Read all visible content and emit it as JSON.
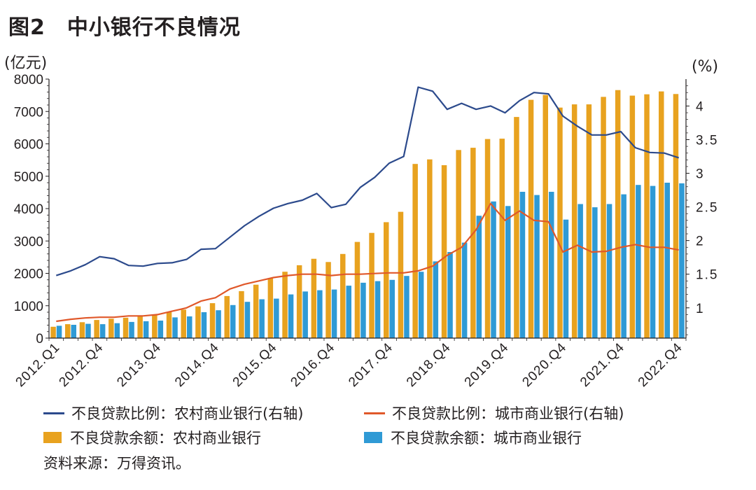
{
  "title": "图2　中小银行不良情况",
  "source": "资料来源：万得资讯。",
  "colors": {
    "rural_bar": "#e8a21f",
    "city_bar": "#2f9ad5",
    "rural_line": "#2c4a8c",
    "city_line": "#e0582a",
    "axis": "#231f20"
  },
  "chart_data": {
    "type": "bar",
    "title": "图2　中小银行不良情况",
    "left_axis": {
      "label": "(亿元)",
      "range": [
        0,
        8000
      ],
      "ticks": [
        "0",
        "1000",
        "2000",
        "3000",
        "4000",
        "5000",
        "6000",
        "7000",
        "8000"
      ]
    },
    "right_axis": {
      "label": "(%)",
      "range": [
        0.55,
        4.4
      ],
      "ticks": [
        "1",
        "1.5",
        "2",
        "2.5",
        "3",
        "3.5",
        "4"
      ],
      "tick_values": [
        1,
        1.5,
        2,
        2.5,
        3,
        3.5,
        4
      ]
    },
    "x_tick_labels": [
      "2012.Q1",
      "2012.Q4",
      "2013.Q4",
      "2014.Q4",
      "2015.Q4",
      "2016.Q4",
      "2017.Q4",
      "2018.Q4",
      "2019.Q4",
      "2020.Q4",
      "2021.Q4",
      "2022.Q4"
    ],
    "x_tick_indices": [
      0,
      3,
      7,
      11,
      15,
      19,
      23,
      27,
      31,
      35,
      39,
      43
    ],
    "categories": [
      "2012.Q1",
      "2012.Q2",
      "2012.Q3",
      "2012.Q4",
      "2013.Q1",
      "2013.Q2",
      "2013.Q3",
      "2013.Q4",
      "2014.Q1",
      "2014.Q2",
      "2014.Q3",
      "2014.Q4",
      "2015.Q1",
      "2015.Q2",
      "2015.Q3",
      "2015.Q4",
      "2016.Q1",
      "2016.Q2",
      "2016.Q3",
      "2016.Q4",
      "2017.Q1",
      "2017.Q2",
      "2017.Q3",
      "2017.Q4",
      "2018.Q1",
      "2018.Q2",
      "2018.Q3",
      "2018.Q4",
      "2019.Q1",
      "2019.Q2",
      "2019.Q3",
      "2019.Q4",
      "2020.Q1",
      "2020.Q2",
      "2020.Q3",
      "2020.Q4",
      "2021.Q1",
      "2021.Q2",
      "2021.Q3",
      "2021.Q4",
      "2022.Q1",
      "2022.Q2",
      "2022.Q3",
      "2022.Q4"
    ],
    "series": [
      {
        "name": "不良贷款余额：农村商业银行",
        "kind": "bar",
        "axis": "left",
        "values": [
          350,
          430,
          490,
          560,
          600,
          630,
          670,
          720,
          800,
          880,
          980,
          1080,
          1300,
          1450,
          1650,
          1850,
          2050,
          2250,
          2450,
          2350,
          2600,
          2970,
          3250,
          3580,
          3900,
          5380,
          5520,
          5340,
          5810,
          5880,
          6150,
          6160,
          6830,
          7360,
          7510,
          7120,
          7220,
          7220,
          7450,
          7660,
          7490,
          7530,
          7620,
          7540
        ]
      },
      {
        "name": "不良贷款余额：城市商业银行",
        "kind": "bar",
        "axis": "left",
        "values": [
          380,
          410,
          440,
          430,
          460,
          500,
          520,
          540,
          640,
          670,
          800,
          860,
          1020,
          1120,
          1200,
          1220,
          1350,
          1440,
          1480,
          1500,
          1620,
          1710,
          1760,
          1800,
          1920,
          2050,
          2370,
          2660,
          2950,
          3780,
          4220,
          4080,
          4520,
          4420,
          4520,
          3660,
          4140,
          4040,
          4140,
          4440,
          4730,
          4700,
          4800,
          4780
        ]
      },
      {
        "name": "不良贷款比例：农村商业银行(右轴)",
        "kind": "line",
        "axis": "right",
        "values": [
          1.48,
          1.55,
          1.64,
          1.76,
          1.73,
          1.63,
          1.62,
          1.66,
          1.67,
          1.72,
          1.87,
          1.88,
          2.05,
          2.22,
          2.36,
          2.48,
          2.55,
          2.6,
          2.7,
          2.49,
          2.54,
          2.79,
          2.94,
          3.15,
          3.25,
          4.28,
          4.22,
          3.95,
          4.04,
          3.95,
          4.0,
          3.9,
          4.08,
          4.2,
          4.18,
          3.85,
          3.7,
          3.57,
          3.57,
          3.62,
          3.38,
          3.31,
          3.3,
          3.23
        ]
      },
      {
        "name": "不良贷款比例：城市商业银行(右轴)",
        "kind": "line",
        "axis": "right",
        "values": [
          0.8,
          0.83,
          0.85,
          0.86,
          0.86,
          0.88,
          0.88,
          0.9,
          0.95,
          1.0,
          1.1,
          1.15,
          1.28,
          1.35,
          1.4,
          1.45,
          1.48,
          1.5,
          1.5,
          1.48,
          1.5,
          1.5,
          1.51,
          1.52,
          1.52,
          1.55,
          1.62,
          1.78,
          1.9,
          2.16,
          2.55,
          2.3,
          2.44,
          2.3,
          2.28,
          1.83,
          1.93,
          1.83,
          1.84,
          1.9,
          1.94,
          1.9,
          1.9,
          1.86
        ]
      }
    ],
    "legend": [
      {
        "label": "不良贷款比例：农村商业银行(右轴)",
        "kind": "line",
        "color": "#2c4a8c"
      },
      {
        "label": "不良贷款比例：城市商业银行(右轴)",
        "kind": "line",
        "color": "#e0582a"
      },
      {
        "label": "不良贷款余额：农村商业银行",
        "kind": "box",
        "color": "#e8a21f"
      },
      {
        "label": "不良贷款余额：城市商业银行",
        "kind": "box",
        "color": "#2f9ad5"
      }
    ],
    "legend_position": "bottom",
    "grid": false
  }
}
